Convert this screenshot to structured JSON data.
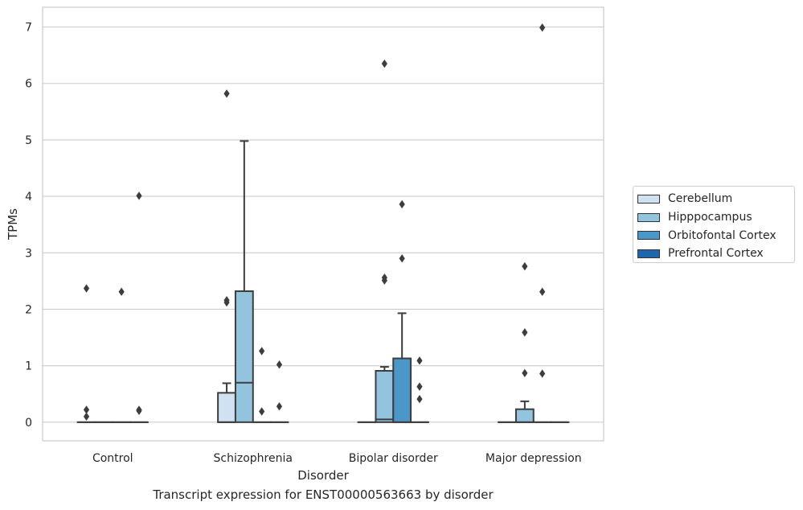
{
  "colors": {
    "cerebellum": "#d0e1f2",
    "hippocampus": "#93c4de",
    "orbitofrontal": "#4a98c9",
    "prefrontal": "#2066ac",
    "box_edge": "#3d3d3d",
    "grid": "#cccccc"
  },
  "caption": "Transcript expression for ENST00000563663 by disorder",
  "legend": [
    {
      "label": "Cerebellum",
      "color": "#d0e1f2"
    },
    {
      "label": "Hipppocampus",
      "color": "#93c4de"
    },
    {
      "label": "Orbitofontal Cortex",
      "color": "#4a98c9"
    },
    {
      "label": "Prefrontal Cortex",
      "color": "#2066ac"
    }
  ],
  "chart_data": {
    "type": "box",
    "title": "",
    "xlabel": "Disorder",
    "ylabel": "TPMs",
    "categories": [
      "Control",
      "Schizophrenia",
      "Bipolar disorder",
      "Major depression"
    ],
    "ylim": [
      -0.33,
      7.35
    ],
    "yticks": [
      0,
      1,
      2,
      3,
      4,
      5,
      6,
      7
    ],
    "grid": true,
    "legend_position": "right",
    "series": [
      {
        "name": "Cerebellum",
        "boxes": [
          {
            "category": "Control",
            "q1": 0,
            "median": 0,
            "q3": 0,
            "whisker_low": 0,
            "whisker_high": 0,
            "outliers": [
              0.1,
              0.22,
              2.37
            ]
          },
          {
            "category": "Schizophrenia",
            "q1": 0,
            "median": 0,
            "q3": 0.52,
            "whisker_low": 0,
            "whisker_high": 0.69,
            "outliers": [
              2.12,
              2.16,
              5.82
            ]
          },
          {
            "category": "Bipolar disorder",
            "q1": 0,
            "median": 0,
            "q3": 0,
            "whisker_low": 0,
            "whisker_high": 0,
            "outliers": []
          },
          {
            "category": "Major depression",
            "q1": 0,
            "median": 0,
            "q3": 0,
            "whisker_low": 0,
            "whisker_high": 0,
            "outliers": []
          }
        ]
      },
      {
        "name": "Hipppocampus",
        "boxes": [
          {
            "category": "Control",
            "q1": 0,
            "median": 0,
            "q3": 0,
            "whisker_low": 0,
            "whisker_high": 0,
            "outliers": []
          },
          {
            "category": "Schizophrenia",
            "q1": 0,
            "median": 0.7,
            "q3": 2.32,
            "whisker_low": 0,
            "whisker_high": 4.98,
            "outliers": []
          },
          {
            "category": "Bipolar disorder",
            "q1": 0,
            "median": 0.05,
            "q3": 0.91,
            "whisker_low": 0,
            "whisker_high": 0.98,
            "outliers": [
              2.51,
              2.56,
              6.35
            ]
          },
          {
            "category": "Major depression",
            "q1": 0,
            "median": 0,
            "q3": 0.23,
            "whisker_low": 0,
            "whisker_high": 0.37,
            "outliers": [
              0.87,
              1.59,
              2.76
            ]
          }
        ]
      },
      {
        "name": "Orbitofontal Cortex",
        "boxes": [
          {
            "category": "Control",
            "q1": 0,
            "median": 0,
            "q3": 0,
            "whisker_low": 0,
            "whisker_high": 0,
            "outliers": [
              2.31
            ]
          },
          {
            "category": "Schizophrenia",
            "q1": 0,
            "median": 0,
            "q3": 0,
            "whisker_low": 0,
            "whisker_high": 0,
            "outliers": [
              0.19,
              1.26
            ]
          },
          {
            "category": "Bipolar disorder",
            "q1": 0,
            "median": 0,
            "q3": 1.13,
            "whisker_low": 0,
            "whisker_high": 1.93,
            "outliers": [
              2.9,
              3.86
            ]
          },
          {
            "category": "Major depression",
            "q1": 0,
            "median": 0,
            "q3": 0,
            "whisker_low": 0,
            "whisker_high": 0,
            "outliers": [
              0.86,
              2.31,
              6.99
            ]
          }
        ]
      },
      {
        "name": "Prefrontal Cortex",
        "boxes": [
          {
            "category": "Control",
            "q1": 0,
            "median": 0,
            "q3": 0,
            "whisker_low": 0,
            "whisker_high": 0,
            "outliers": [
              0.2,
              0.22,
              4.01
            ]
          },
          {
            "category": "Schizophrenia",
            "q1": 0,
            "median": 0,
            "q3": 0,
            "whisker_low": 0,
            "whisker_high": 0,
            "outliers": [
              0.28,
              1.02
            ]
          },
          {
            "category": "Bipolar disorder",
            "q1": 0,
            "median": 0,
            "q3": 0,
            "whisker_low": 0,
            "whisker_high": 0,
            "outliers": [
              0.41,
              0.63,
              1.09
            ]
          },
          {
            "category": "Major depression",
            "q1": 0,
            "median": 0,
            "q3": 0,
            "whisker_low": 0,
            "whisker_high": 0,
            "outliers": []
          }
        ]
      }
    ]
  }
}
